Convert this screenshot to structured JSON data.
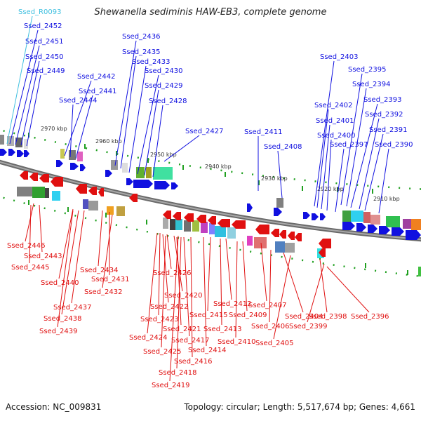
{
  "title": "Shewanella sediminis HAW-EB3, complete genome",
  "footer": {
    "accession": "Accession: NC_009831",
    "summary": "Topology: circular; Length: 5,517,674 bp; Genes: 4,661"
  },
  "colors": {
    "forward": "#1010e0",
    "reverse": "#e01010",
    "rna": "#40c0e0",
    "backbone": "#808080",
    "tick": "#20a020"
  },
  "scale_labels": [
    "2970 kbp",
    "2960 kbp",
    "2950 kbp",
    "2940 kbp",
    "2930 kbp",
    "2920 kbp",
    "2910 kbp"
  ],
  "forward_labels": [
    "Ssed_2452",
    "Ssed_2451",
    "Ssed_2450",
    "Ssed_2449",
    "Ssed_2442",
    "Ssed_2441",
    "Ssed_2444",
    "Ssed_2436",
    "Ssed_2435",
    "Ssed_2433",
    "Ssed_2430",
    "Ssed_2429",
    "Ssed_2428",
    "Ssed_2427",
    "Ssed_2411",
    "Ssed_2408",
    "Ssed_2403",
    "Ssed_2395",
    "Ssed_2394",
    "Ssed_2393",
    "Ssed_2402",
    "Ssed_2392",
    "Ssed_2401",
    "Ssed_2391",
    "Ssed_2400",
    "Ssed_2397",
    "Ssed_2390"
  ],
  "rna_labels": [
    "Ssed_R0093"
  ],
  "reverse_labels": [
    "Ssed_2446",
    "Ssed_2443",
    "Ssed_2445",
    "Ssed_2434",
    "Ssed_2431",
    "Ssed_2440",
    "Ssed_2432",
    "Ssed_2437",
    "Ssed_2438",
    "Ssed_2439",
    "Ssed_2426",
    "Ssed_2420",
    "Ssed_2422",
    "Ssed_2423",
    "Ssed_2421",
    "Ssed_2424",
    "Ssed_2425",
    "Ssed_2412",
    "Ssed_2415",
    "Ssed_2413",
    "Ssed_2417",
    "Ssed_2414",
    "Ssed_2416",
    "Ssed_2418",
    "Ssed_2419",
    "Ssed_2407",
    "Ssed_2409",
    "Ssed_2410",
    "Ssed_2404",
    "Ssed_2406",
    "Ssed_2405",
    "Ssed_2398",
    "Ssed_2399",
    "Ssed_2396"
  ]
}
